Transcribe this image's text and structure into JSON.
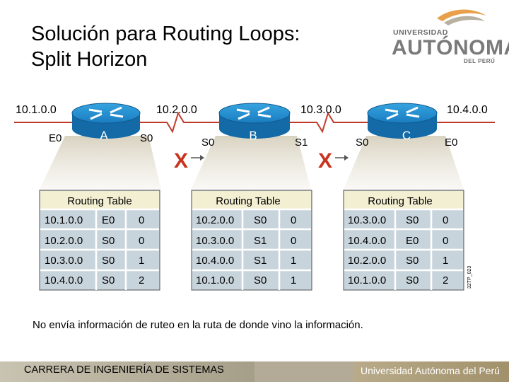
{
  "title": {
    "line1": "Solución para Routing Loops:",
    "line2": "Split Horizon"
  },
  "logo": {
    "line1": "UNIVERSIDAD",
    "line2": "AUTÓNOMA",
    "line3": "DEL PERÚ",
    "colors": [
      "#e8a04a",
      "#b8b0a0"
    ]
  },
  "networks": [
    "10.1.0.0",
    "10.2.0.0",
    "10.3.0.0",
    "10.4.0.0"
  ],
  "routers": [
    {
      "name": "A",
      "left_iface": "E0",
      "right_iface": "S0"
    },
    {
      "name": "B",
      "left_iface": "S0",
      "right_iface": "S1"
    },
    {
      "name": "C",
      "left_iface": "S0",
      "right_iface": "E0"
    }
  ],
  "blocked_mark": "X",
  "table_header": "Routing Table",
  "tables": [
    {
      "rows": [
        [
          "10.1.0.0",
          "E0",
          "0"
        ],
        [
          "10.2.0.0",
          "S0",
          "0"
        ],
        [
          "10.3.0.0",
          "S0",
          "1"
        ],
        [
          "10.4.0.0",
          "S0",
          "2"
        ]
      ]
    },
    {
      "rows": [
        [
          "10.2.0.0",
          "S0",
          "0"
        ],
        [
          "10.3.0.0",
          "S1",
          "0"
        ],
        [
          "10.4.0.0",
          "S1",
          "1"
        ],
        [
          "10.1.0.0",
          "S0",
          "1"
        ]
      ]
    },
    {
      "rows": [
        [
          "10.3.0.0",
          "S0",
          "0"
        ],
        [
          "10.4.0.0",
          "E0",
          "0"
        ],
        [
          "10.2.0.0",
          "S0",
          "1"
        ],
        [
          "10.1.0.0",
          "S0",
          "2"
        ]
      ]
    }
  ],
  "figure_id": "32TP_023",
  "note": "No envía información de ruteo en la ruta de donde vino la información.",
  "footer": {
    "left": "CARRERA DE INGENIERÍA DE SISTEMAS",
    "right": "Universidad Autónoma del Perú"
  },
  "colors": {
    "router_blue": "#1e88c8",
    "x_red": "#c8321e",
    "cone": "#e8e4d8",
    "table_header_bg": "#f3efd2",
    "table_cell_bg": "#c8d4dc"
  }
}
